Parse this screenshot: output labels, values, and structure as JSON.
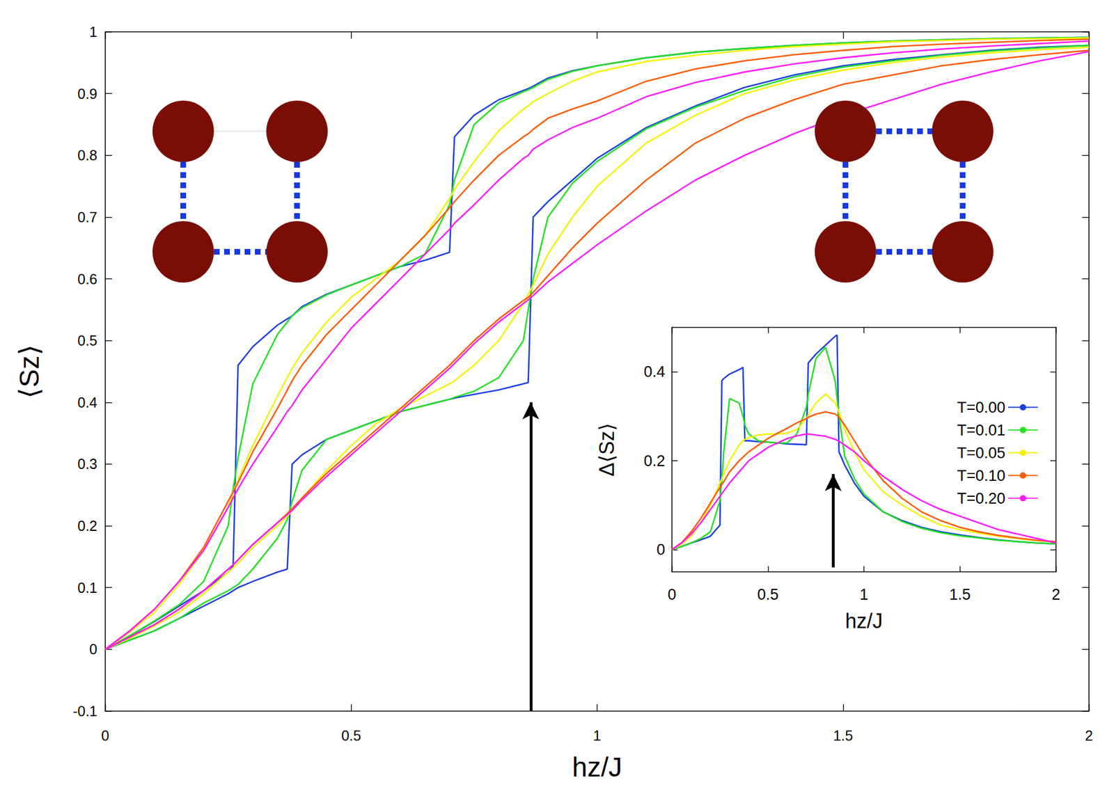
{
  "chart_data": [
    {
      "type": "line",
      "xlabel": "hz/J",
      "ylabel": "⟨Sz⟩",
      "xlim": [
        0,
        2
      ],
      "xticks": [
        0,
        0.5,
        1,
        1.5,
        2
      ],
      "ylim": [
        -0.1,
        1
      ],
      "yticks": [
        -0.1,
        0,
        0.1,
        0.2,
        0.3,
        0.4,
        0.5,
        0.6,
        0.7,
        0.8,
        0.9,
        1
      ],
      "grid": false,
      "arrow": {
        "x": 0.865,
        "y": [
          -0.1,
          0.4
        ]
      },
      "x": [
        0,
        0.05,
        0.1,
        0.15,
        0.2,
        0.25,
        0.26,
        0.27,
        0.3,
        0.35,
        0.37,
        0.38,
        0.4,
        0.45,
        0.5,
        0.55,
        0.6,
        0.65,
        0.7,
        0.71,
        0.75,
        0.8,
        0.85,
        0.86,
        0.87,
        0.9,
        0.95,
        1.0,
        1.1,
        1.2,
        1.3,
        1.4,
        1.5,
        1.6,
        1.7,
        1.8,
        1.9,
        2.0
      ],
      "series": [
        {
          "name": "T=0.00",
          "color": "#1c3fe3",
          "values": [
            0,
            0.022,
            0.045,
            0.07,
            0.095,
            0.125,
            0.135,
            0.46,
            0.49,
            0.525,
            0.535,
            0.54,
            0.555,
            0.575,
            0.59,
            0.605,
            0.62,
            0.63,
            0.643,
            0.83,
            0.865,
            0.89,
            0.905,
            0.908,
            0.912,
            0.925,
            0.937,
            0.945,
            0.958,
            0.967,
            0.973,
            0.978,
            0.982,
            0.985,
            0.987,
            0.989,
            0.99,
            0.991
          ]
        },
        {
          "name": "T=0.01",
          "color": "#22e022",
          "values": [
            0,
            0.022,
            0.046,
            0.072,
            0.11,
            0.2,
            0.26,
            0.31,
            0.43,
            0.51,
            0.53,
            0.54,
            0.553,
            0.574,
            0.59,
            0.605,
            0.62,
            0.64,
            0.72,
            0.76,
            0.85,
            0.885,
            0.903,
            0.906,
            0.91,
            0.923,
            0.936,
            0.945,
            0.958,
            0.967,
            0.973,
            0.978,
            0.982,
            0.985,
            0.987,
            0.989,
            0.99,
            0.991
          ]
        },
        {
          "name": "T=0.05",
          "color": "#f2f200",
          "values": [
            0,
            0.028,
            0.06,
            0.105,
            0.16,
            0.23,
            0.255,
            0.275,
            0.33,
            0.41,
            0.44,
            0.455,
            0.48,
            0.53,
            0.57,
            0.6,
            0.63,
            0.67,
            0.73,
            0.745,
            0.79,
            0.84,
            0.875,
            0.88,
            0.887,
            0.9,
            0.92,
            0.935,
            0.952,
            0.962,
            0.97,
            0.976,
            0.98,
            0.984,
            0.986,
            0.988,
            0.989,
            0.99
          ]
        },
        {
          "name": "T=0.10",
          "color": "#ff5a00",
          "values": [
            0,
            0.03,
            0.065,
            0.11,
            0.165,
            0.24,
            0.255,
            0.27,
            0.32,
            0.39,
            0.42,
            0.435,
            0.46,
            0.51,
            0.55,
            0.59,
            0.63,
            0.67,
            0.715,
            0.725,
            0.76,
            0.8,
            0.83,
            0.835,
            0.842,
            0.86,
            0.875,
            0.888,
            0.92,
            0.94,
            0.953,
            0.963,
            0.97,
            0.976,
            0.98,
            0.983,
            0.986,
            0.988
          ]
        },
        {
          "name": "T=0.20",
          "color": "#ff1aff",
          "values": [
            0,
            0.03,
            0.065,
            0.11,
            0.16,
            0.23,
            0.245,
            0.26,
            0.3,
            0.36,
            0.385,
            0.395,
            0.42,
            0.47,
            0.52,
            0.56,
            0.6,
            0.64,
            0.68,
            0.69,
            0.72,
            0.76,
            0.795,
            0.8,
            0.81,
            0.825,
            0.845,
            0.86,
            0.895,
            0.918,
            0.935,
            0.948,
            0.958,
            0.966,
            0.972,
            0.977,
            0.981,
            0.985
          ]
        },
        {
          "name": "T=0.00",
          "color": "#1c3fe3",
          "values": [
            0,
            0.015,
            0.03,
            0.05,
            0.07,
            0.09,
            0.095,
            0.1,
            0.11,
            0.125,
            0.13,
            0.3,
            0.315,
            0.34,
            0.355,
            0.37,
            0.385,
            0.395,
            0.405,
            0.407,
            0.413,
            0.42,
            0.43,
            0.432,
            0.7,
            0.725,
            0.76,
            0.795,
            0.845,
            0.88,
            0.91,
            0.93,
            0.945,
            0.955,
            0.963,
            0.97,
            0.975,
            0.978
          ]
        },
        {
          "name": "T=0.01",
          "color": "#22e022",
          "values": [
            0,
            0.015,
            0.03,
            0.05,
            0.075,
            0.095,
            0.1,
            0.105,
            0.13,
            0.18,
            0.21,
            0.24,
            0.29,
            0.34,
            0.355,
            0.37,
            0.385,
            0.395,
            0.405,
            0.408,
            0.418,
            0.44,
            0.5,
            0.55,
            0.6,
            0.7,
            0.755,
            0.79,
            0.843,
            0.878,
            0.905,
            0.927,
            0.943,
            0.953,
            0.962,
            0.969,
            0.974,
            0.978
          ]
        },
        {
          "name": "T=0.05",
          "color": "#f2f200",
          "values": [
            0,
            0.018,
            0.038,
            0.06,
            0.09,
            0.125,
            0.132,
            0.14,
            0.165,
            0.2,
            0.215,
            0.225,
            0.245,
            0.29,
            0.33,
            0.365,
            0.39,
            0.41,
            0.43,
            0.435,
            0.46,
            0.5,
            0.56,
            0.575,
            0.59,
            0.64,
            0.7,
            0.75,
            0.82,
            0.865,
            0.9,
            0.922,
            0.938,
            0.95,
            0.959,
            0.966,
            0.971,
            0.975
          ]
        },
        {
          "name": "T=0.10",
          "color": "#ff5a00",
          "values": [
            0,
            0.02,
            0.04,
            0.065,
            0.095,
            0.13,
            0.137,
            0.145,
            0.17,
            0.205,
            0.22,
            0.228,
            0.245,
            0.285,
            0.32,
            0.355,
            0.39,
            0.425,
            0.46,
            0.468,
            0.5,
            0.535,
            0.565,
            0.57,
            0.578,
            0.605,
            0.65,
            0.69,
            0.76,
            0.82,
            0.86,
            0.89,
            0.915,
            0.93,
            0.945,
            0.955,
            0.963,
            0.97
          ]
        },
        {
          "name": "T=0.20",
          "color": "#ff1aff",
          "values": [
            0,
            0.02,
            0.04,
            0.065,
            0.095,
            0.13,
            0.137,
            0.145,
            0.17,
            0.205,
            0.218,
            0.225,
            0.242,
            0.28,
            0.315,
            0.35,
            0.385,
            0.42,
            0.455,
            0.463,
            0.495,
            0.53,
            0.56,
            0.566,
            0.573,
            0.595,
            0.625,
            0.655,
            0.71,
            0.76,
            0.8,
            0.835,
            0.865,
            0.89,
            0.915,
            0.935,
            0.953,
            0.968
          ]
        }
      ]
    },
    {
      "type": "line",
      "xlabel": "hz/J",
      "ylabel": "Δ⟨Sz⟩",
      "xlim": [
        0,
        2
      ],
      "xticks": [
        0,
        0.5,
        1,
        1.5,
        2
      ],
      "ylim": [
        -0.05,
        0.5
      ],
      "yticks": [
        0,
        0.2,
        0.4
      ],
      "grid": false,
      "legend": "upper right",
      "arrow": {
        "x": 0.84,
        "y": [
          -0.04,
          0.17
        ]
      },
      "x": [
        0,
        0.05,
        0.1,
        0.15,
        0.2,
        0.25,
        0.26,
        0.27,
        0.3,
        0.35,
        0.37,
        0.38,
        0.4,
        0.45,
        0.5,
        0.55,
        0.6,
        0.65,
        0.7,
        0.71,
        0.75,
        0.8,
        0.85,
        0.86,
        0.87,
        0.9,
        0.95,
        1.0,
        1.1,
        1.2,
        1.3,
        1.4,
        1.5,
        1.6,
        1.7,
        1.8,
        1.9,
        2.0
      ],
      "series": [
        {
          "name": "T=0.00",
          "color": "#1c3fe3",
          "values": [
            0,
            0.007,
            0.015,
            0.022,
            0.03,
            0.055,
            0.38,
            0.385,
            0.395,
            0.405,
            0.41,
            0.245,
            0.245,
            0.243,
            0.242,
            0.24,
            0.238,
            0.237,
            0.236,
            0.42,
            0.44,
            0.46,
            0.48,
            0.483,
            0.22,
            0.19,
            0.15,
            0.12,
            0.085,
            0.065,
            0.05,
            0.04,
            0.033,
            0.027,
            0.022,
            0.018,
            0.015,
            0.013
          ]
        },
        {
          "name": "T=0.01",
          "color": "#22e022",
          "values": [
            0,
            0.007,
            0.015,
            0.025,
            0.04,
            0.11,
            0.16,
            0.22,
            0.34,
            0.33,
            0.3,
            0.28,
            0.26,
            0.245,
            0.242,
            0.24,
            0.24,
            0.26,
            0.32,
            0.35,
            0.43,
            0.455,
            0.38,
            0.34,
            0.3,
            0.21,
            0.16,
            0.125,
            0.085,
            0.063,
            0.048,
            0.038,
            0.031,
            0.026,
            0.021,
            0.018,
            0.015,
            0.013
          ]
        },
        {
          "name": "T=0.05",
          "color": "#f2f200",
          "values": [
            0,
            0.012,
            0.03,
            0.06,
            0.1,
            0.15,
            0.16,
            0.17,
            0.2,
            0.235,
            0.245,
            0.248,
            0.252,
            0.258,
            0.26,
            0.26,
            0.262,
            0.27,
            0.295,
            0.303,
            0.33,
            0.35,
            0.33,
            0.32,
            0.31,
            0.27,
            0.22,
            0.18,
            0.13,
            0.1,
            0.075,
            0.055,
            0.045,
            0.037,
            0.03,
            0.025,
            0.02,
            0.017
          ]
        },
        {
          "name": "T=0.10",
          "color": "#ff5a00",
          "values": [
            0,
            0.015,
            0.04,
            0.07,
            0.105,
            0.14,
            0.147,
            0.153,
            0.175,
            0.2,
            0.208,
            0.212,
            0.22,
            0.235,
            0.25,
            0.262,
            0.273,
            0.285,
            0.295,
            0.298,
            0.305,
            0.31,
            0.305,
            0.302,
            0.298,
            0.28,
            0.245,
            0.21,
            0.155,
            0.115,
            0.085,
            0.065,
            0.05,
            0.04,
            0.032,
            0.026,
            0.021,
            0.018
          ]
        },
        {
          "name": "T=0.20",
          "color": "#ff1aff",
          "values": [
            0,
            0.015,
            0.035,
            0.06,
            0.09,
            0.12,
            0.126,
            0.132,
            0.15,
            0.175,
            0.185,
            0.19,
            0.2,
            0.215,
            0.23,
            0.24,
            0.25,
            0.256,
            0.26,
            0.26,
            0.258,
            0.255,
            0.248,
            0.246,
            0.244,
            0.235,
            0.22,
            0.2,
            0.165,
            0.135,
            0.11,
            0.09,
            0.075,
            0.06,
            0.045,
            0.035,
            0.025,
            0.015
          ]
        }
      ]
    }
  ]
}
